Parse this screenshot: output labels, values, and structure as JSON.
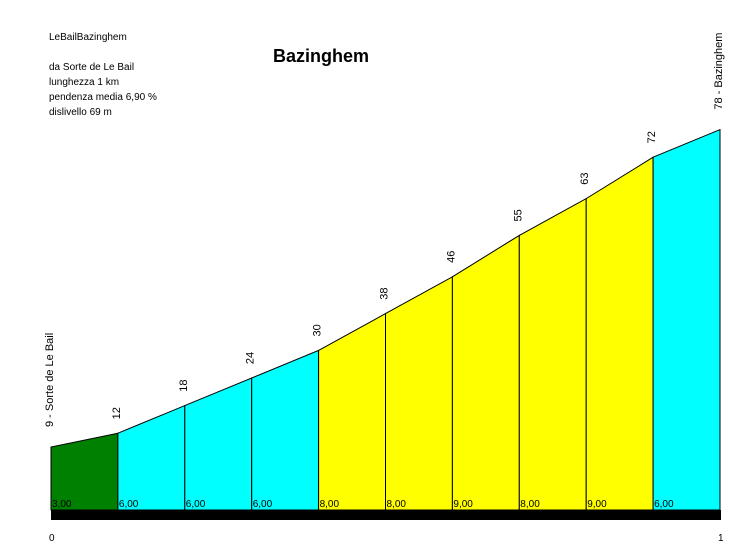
{
  "header": {
    "code": "LeBailBazinghem",
    "title": "Bazinghem",
    "info": [
      "da Sorte de Le Bail",
      "lunghezza 1 km",
      "pendenza media 6,90 %",
      "dislivello 69 m"
    ]
  },
  "chart_data": {
    "type": "area",
    "title": "Bazinghem",
    "start_label": "9 - Sorte de Le Bail",
    "end_label": "78 - Bazinghem",
    "x_ticks": [
      "0",
      "1"
    ],
    "xlim": [
      0,
      1
    ],
    "ylim": [
      0,
      78
    ],
    "points": [
      {
        "x": 0.0,
        "alt": 9
      },
      {
        "x": 0.1,
        "alt": 12
      },
      {
        "x": 0.2,
        "alt": 18
      },
      {
        "x": 0.3,
        "alt": 24
      },
      {
        "x": 0.4,
        "alt": 30
      },
      {
        "x": 0.5,
        "alt": 38
      },
      {
        "x": 0.6,
        "alt": 46
      },
      {
        "x": 0.7,
        "alt": 55
      },
      {
        "x": 0.8,
        "alt": 63
      },
      {
        "x": 0.9,
        "alt": 72
      },
      {
        "x": 1.0,
        "alt": 78
      }
    ],
    "alt_labels": [
      "9 - Sorte de Le Bail",
      "12",
      "18",
      "24",
      "30",
      "38",
      "46",
      "55",
      "63",
      "72",
      "78 - Bazinghem"
    ],
    "segments": [
      {
        "label": "3,00",
        "color": "#008000"
      },
      {
        "label": "6,00",
        "color": "#00ffff"
      },
      {
        "label": "6,00",
        "color": "#00ffff"
      },
      {
        "label": "6,00",
        "color": "#00ffff"
      },
      {
        "label": "8,00",
        "color": "#ffff00"
      },
      {
        "label": "8,00",
        "color": "#ffff00"
      },
      {
        "label": "9,00",
        "color": "#ffff00"
      },
      {
        "label": "8,00",
        "color": "#ffff00"
      },
      {
        "label": "9,00",
        "color": "#ffff00"
      },
      {
        "label": "6,00",
        "color": "#00ffff"
      }
    ]
  }
}
